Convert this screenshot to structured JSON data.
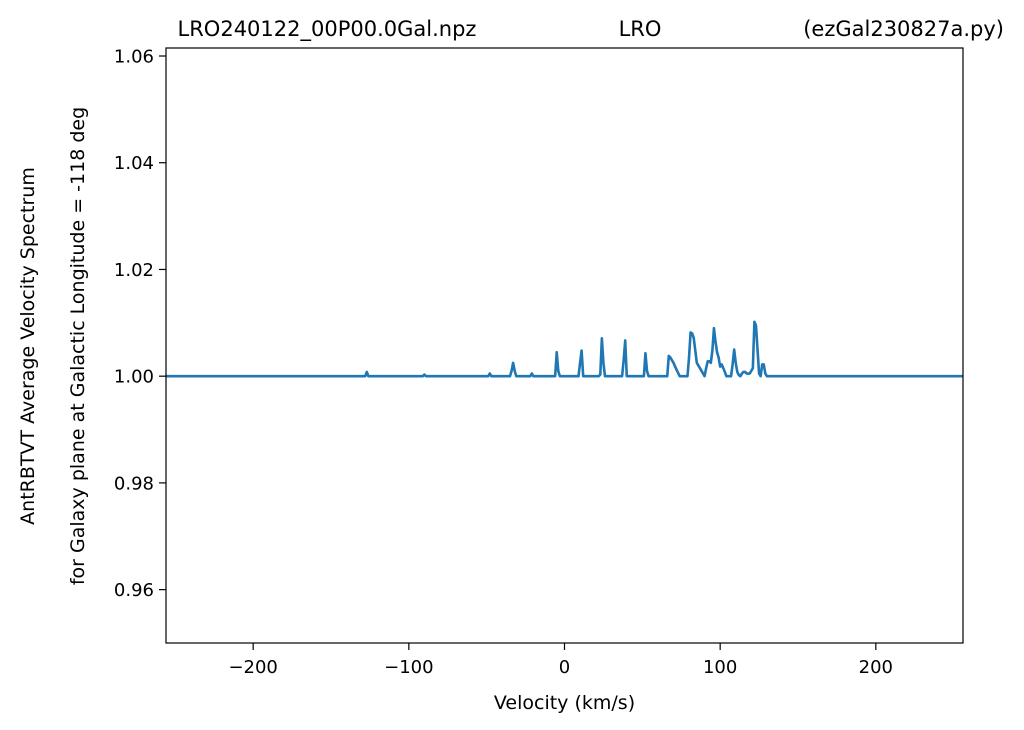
{
  "chart_data": {
    "type": "line",
    "title_left": "LRO240122_00P00.0Gal.npz",
    "title_center": "LRO",
    "title_right": "(ezGal230827a.py)",
    "xlabel": "Velocity (km/s)",
    "ylabel_line1": "AntRBTVT Average Velocity Spectrum",
    "ylabel_line2": "for Galaxy plane at Galactic Longitude = -118 deg",
    "xlim": [
      -256,
      256
    ],
    "ylim": [
      0.95,
      1.0615
    ],
    "xticks": [
      -200,
      -100,
      0,
      100,
      200
    ],
    "xtick_labels": [
      "−200",
      "−100",
      "0",
      "100",
      "200"
    ],
    "yticks": [
      0.96,
      0.98,
      1.0,
      1.02,
      1.04,
      1.06
    ],
    "ytick_labels": [
      "0.96",
      "0.98",
      "1.00",
      "1.02",
      "1.04",
      "1.06"
    ],
    "grid": false,
    "line_color": "#1f77b4",
    "series": [
      {
        "x": [
          -256,
          -128,
          -127,
          -126,
          -125,
          -91,
          -90,
          -89,
          -49,
          -48,
          -47,
          -35,
          -34,
          -33,
          -32,
          -31,
          -22,
          -21,
          -20,
          -6,
          -5,
          -4,
          -3,
          9,
          10,
          11,
          12,
          22,
          23,
          24,
          25,
          26,
          37,
          38,
          39,
          40,
          51,
          52,
          53,
          54,
          66,
          67,
          68,
          70,
          72,
          74,
          79,
          80,
          81,
          82,
          83,
          85,
          90,
          91,
          92,
          93,
          94,
          95,
          96,
          97,
          98,
          99,
          100,
          101,
          102,
          103,
          104,
          107,
          108,
          109,
          110,
          111,
          112,
          113,
          114,
          115,
          116,
          117,
          119,
          120,
          121,
          122,
          123,
          124,
          125,
          126,
          127,
          128,
          129,
          130,
          131,
          256
        ],
        "y": [
          1.0,
          1.0,
          1.0008,
          1.0,
          1.0,
          1.0,
          1.0003,
          1.0,
          1.0,
          1.0005,
          1.0,
          1.0,
          1.001,
          1.0025,
          1.001,
          1.0,
          1.0,
          1.0005,
          1.0,
          1.0,
          1.0045,
          1.001,
          1.0,
          1.0,
          1.0025,
          1.0048,
          1.0,
          1.0,
          1.0003,
          1.0071,
          1.0025,
          1.0,
          1.0,
          1.003,
          1.0067,
          1.0,
          1.0,
          1.0043,
          1.001,
          1.0,
          1.0,
          1.0038,
          1.0035,
          1.0025,
          1.0012,
          1.0,
          1.0,
          1.0035,
          1.0082,
          1.008,
          1.0072,
          1.0025,
          1.0,
          1.0015,
          1.0028,
          1.0028,
          1.0025,
          1.0048,
          1.009,
          1.0065,
          1.0045,
          1.0035,
          1.0018,
          1.0022,
          1.0015,
          1.0008,
          1.0,
          1.0,
          1.0022,
          1.005,
          1.0025,
          1.0008,
          1.0002,
          1.0,
          1.0005,
          1.0008,
          1.0008,
          1.0005,
          1.0005,
          1.001,
          1.0015,
          1.0102,
          1.0095,
          1.005,
          1.0005,
          1.0,
          1.0022,
          1.0022,
          1.0005,
          1.0,
          1.0,
          1.0
        ]
      }
    ]
  }
}
